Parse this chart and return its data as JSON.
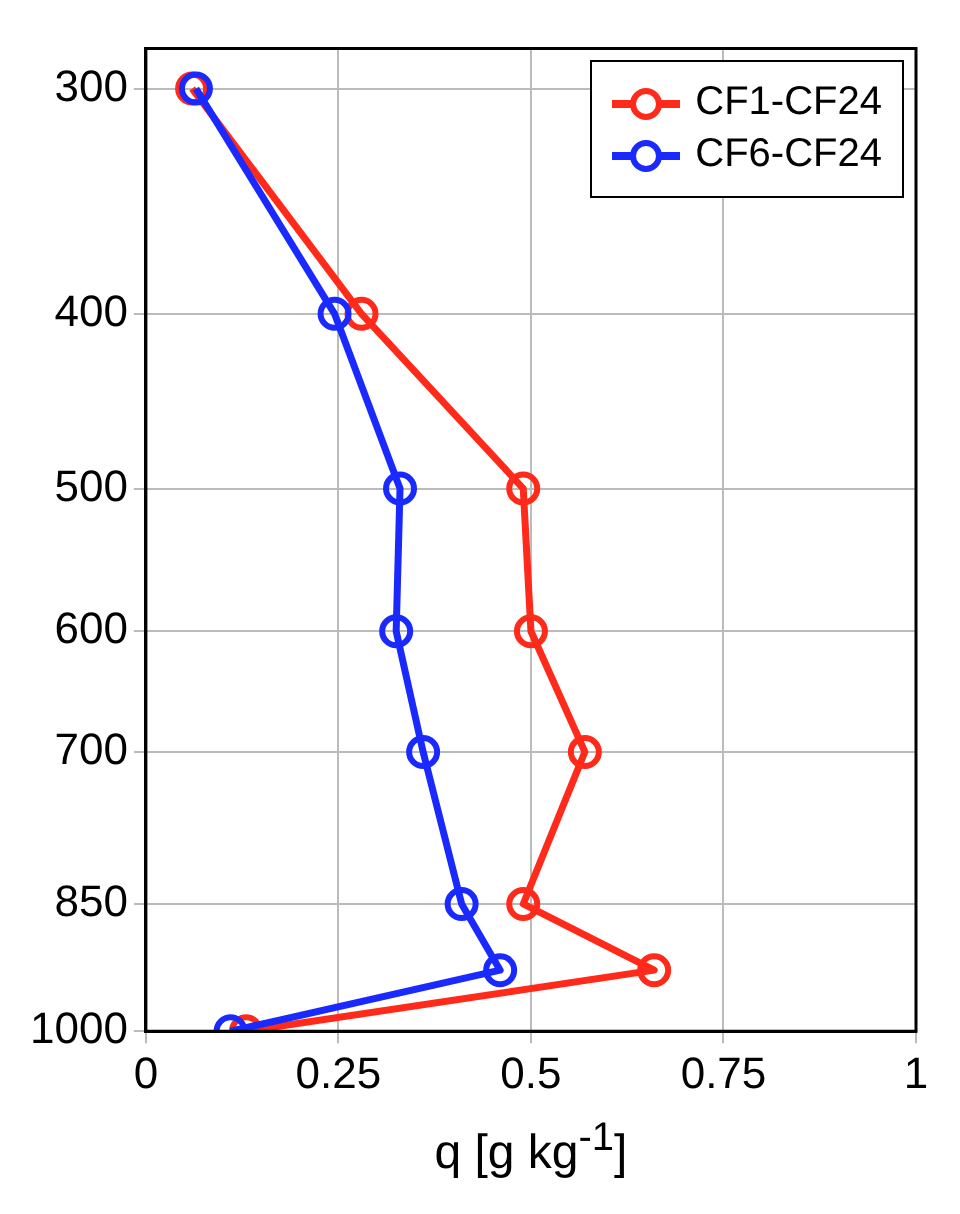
{
  "chart_data": {
    "type": "line",
    "orientation": "horizontal",
    "xlabel": "q [g kg$^{-1}$]",
    "x": [
      300,
      400,
      500,
      600,
      700,
      850,
      925,
      1000
    ],
    "series": [
      {
        "name": "CF1-CF24",
        "color": "#ff2a1a",
        "values": [
          0.06,
          0.28,
          0.49,
          0.5,
          0.57,
          0.49,
          0.66,
          0.13
        ]
      },
      {
        "name": "CF6-CF24",
        "color": "#1a2aff",
        "values": [
          0.065,
          0.245,
          0.33,
          0.325,
          0.36,
          0.41,
          0.46,
          0.11
        ]
      }
    ],
    "xlim": [
      0,
      1
    ],
    "xticks": [
      0,
      0.25,
      0.5,
      0.75,
      1
    ],
    "ylim": [
      1000,
      285
    ],
    "yticks": [
      300,
      400,
      500,
      600,
      700,
      850,
      1000
    ],
    "log": "y",
    "grid": true,
    "legend": "top right",
    "marker": "circle",
    "line_style": "solid"
  }
}
